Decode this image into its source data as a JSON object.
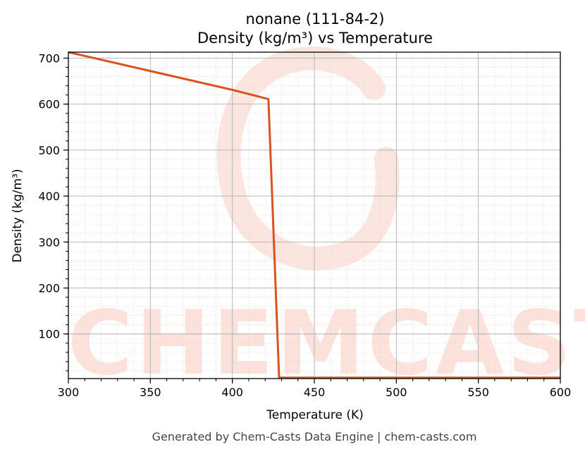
{
  "chart_data": {
    "type": "line",
    "title": "nonane (111-84-2)",
    "subtitle": "Density (kg/m³) vs Temperature",
    "xlabel": "Temperature (K)",
    "ylabel": "Density (kg/m³)",
    "xlim": [
      300,
      600
    ],
    "ylim": [
      3,
      713
    ],
    "x_ticks": [
      300,
      350,
      400,
      450,
      500,
      550,
      600
    ],
    "y_ticks": [
      100,
      200,
      300,
      400,
      500,
      600,
      700
    ],
    "grid": true,
    "series": [
      {
        "color": "#d9531e",
        "points": [
          [
            300,
            713
          ],
          [
            350,
            672
          ],
          [
            400,
            631
          ],
          [
            422,
            611
          ],
          [
            428.5,
            5
          ],
          [
            450,
            5
          ],
          [
            500,
            5
          ],
          [
            550,
            5
          ],
          [
            600,
            5
          ]
        ]
      }
    ]
  },
  "watermark": {
    "text": "CHEMCASTS",
    "color": "#fde2dc"
  },
  "footer": "Generated by Chem-Casts Data Engine | chem-casts.com"
}
